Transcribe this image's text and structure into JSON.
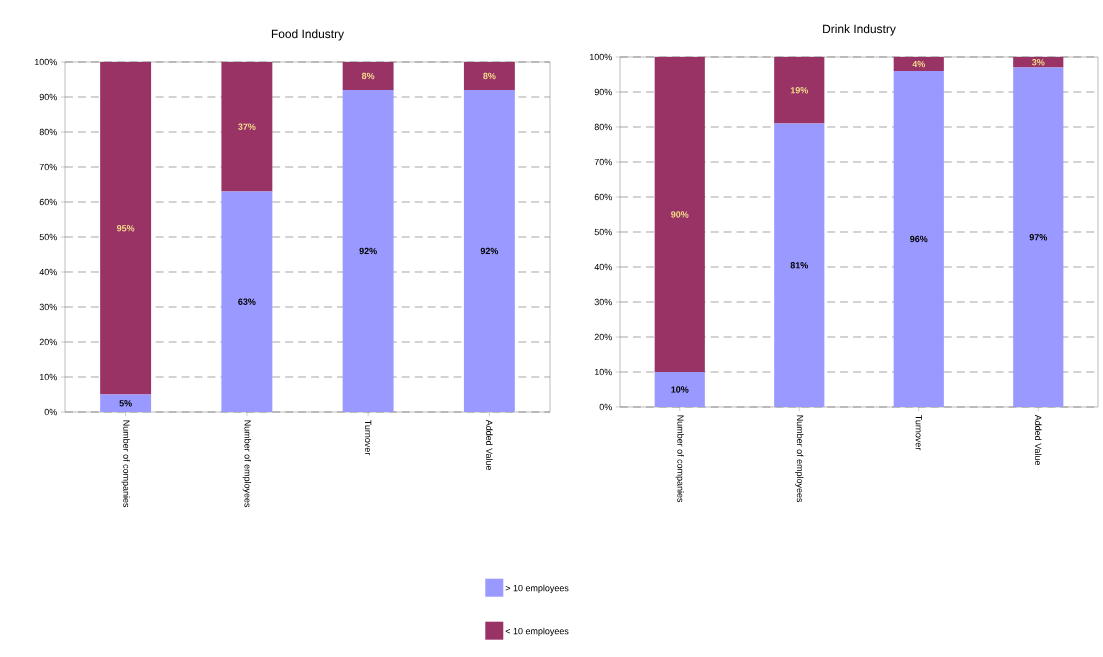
{
  "chart_data": [
    {
      "type": "bar",
      "stacked": true,
      "title": "Food Industry",
      "categories": [
        "Number of companies",
        "Number of employees",
        "Turnover",
        "Added Value"
      ],
      "ylim": [
        0,
        100
      ],
      "yticks": [
        {
          "value": 0,
          "label": "0%"
        },
        {
          "value": 10,
          "label": "10%"
        },
        {
          "value": 20,
          "label": "20%"
        },
        {
          "value": 30,
          "label": "30%"
        },
        {
          "value": 40,
          "label": "40%"
        },
        {
          "value": 50,
          "label": "50%"
        },
        {
          "value": 60,
          "label": "60%"
        },
        {
          "value": 70,
          "label": "70%"
        },
        {
          "value": 80,
          "label": "80%"
        },
        {
          "value": 90,
          "label": "90%"
        },
        {
          "value": 100,
          "label": "100%"
        }
      ],
      "grid": "y",
      "legend": "bottom right",
      "series": [
        {
          "name": "> 10 employees",
          "color": "#9999ff",
          "values": [
            5,
            63,
            92,
            92
          ],
          "value_labels": [
            "5%",
            "63%",
            "92%",
            "92%"
          ]
        },
        {
          "name": "< 10 employees",
          "color": "#993366",
          "values": [
            95,
            37,
            8,
            8
          ],
          "value_labels": [
            "95%",
            "37%",
            "8%",
            "8%"
          ]
        }
      ]
    },
    {
      "type": "bar",
      "stacked": true,
      "title": "Drink Industry",
      "categories": [
        "Number of companies",
        "Number of employees",
        "Turnover",
        "Added Value"
      ],
      "ylim": [
        0,
        100
      ],
      "yticks": [
        {
          "value": 0,
          "label": "0%"
        },
        {
          "value": 10,
          "label": "10%"
        },
        {
          "value": 20,
          "label": "20%"
        },
        {
          "value": 30,
          "label": "30%"
        },
        {
          "value": 40,
          "label": "40%"
        },
        {
          "value": 50,
          "label": "50%"
        },
        {
          "value": 60,
          "label": "60%"
        },
        {
          "value": 70,
          "label": "70%"
        },
        {
          "value": 80,
          "label": "80%"
        },
        {
          "value": 90,
          "label": "90%"
        },
        {
          "value": 100,
          "label": "100%"
        }
      ],
      "grid": "y",
      "series": [
        {
          "color": "#9999ff",
          "values": [
            10,
            81,
            96,
            97
          ],
          "value_labels": [
            "10%",
            "81%",
            "96%",
            "97%"
          ]
        },
        {
          "color": "#993366",
          "values": [
            90,
            19,
            4,
            3
          ],
          "value_labels": [
            "90%",
            "19%",
            "4%",
            "3%"
          ]
        }
      ]
    }
  ]
}
